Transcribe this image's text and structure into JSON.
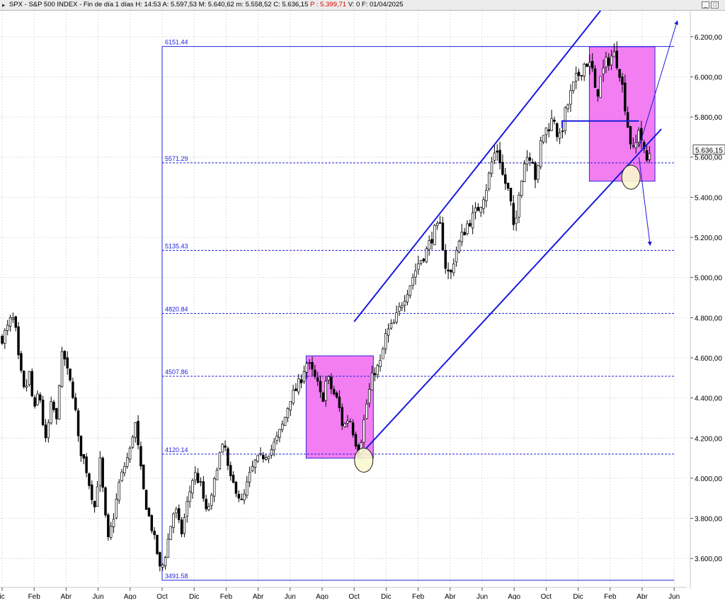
{
  "header": {
    "symbol": "SPX - S&P 500 INDEX - Fin de día 1 días",
    "h": "H: 14:53",
    "a": "A: 5.597,53",
    "m": "M: 5.640,62",
    "low": "m: 5.558,52",
    "c": "C: 5.636,15",
    "p": "P : 5.399,71",
    "v": "V: 0",
    "f": "F: 01/04/2025"
  },
  "chart_data": {
    "type": "candlestick",
    "ylim": [
      3470,
      6330
    ],
    "y_ticks": [
      {
        "value": 3600,
        "label": "3.600,00"
      },
      {
        "value": 3800,
        "label": "3.800,00"
      },
      {
        "value": 4000,
        "label": "4.000,00"
      },
      {
        "value": 4200,
        "label": "4.200,00"
      },
      {
        "value": 4400,
        "label": "4.400,00"
      },
      {
        "value": 4600,
        "label": "4.600,00"
      },
      {
        "value": 4800,
        "label": "4.800,00"
      },
      {
        "value": 5000,
        "label": "5.000,00"
      },
      {
        "value": 5200,
        "label": "5.200,00"
      },
      {
        "value": 5400,
        "label": "5.400,00"
      },
      {
        "value": 5600,
        "label": "5.600,00"
      },
      {
        "value": 5800,
        "label": "5.800,00"
      },
      {
        "value": 6000,
        "label": "6.000,00"
      },
      {
        "value": 6200,
        "label": "6.200,00"
      }
    ],
    "x_ticks": [
      {
        "t": 0,
        "label": "ic"
      },
      {
        "t": 2,
        "label": "Feb"
      },
      {
        "t": 4,
        "label": "Abr"
      },
      {
        "t": 6,
        "label": "Jun"
      },
      {
        "t": 8,
        "label": "Ago"
      },
      {
        "t": 10,
        "label": "Oct"
      },
      {
        "t": 12,
        "label": "Dic"
      },
      {
        "t": 14,
        "label": "Feb"
      },
      {
        "t": 16,
        "label": "Abr"
      },
      {
        "t": 18,
        "label": "Jun"
      },
      {
        "t": 20,
        "label": "Ago"
      },
      {
        "t": 22,
        "label": "Oct"
      },
      {
        "t": 24,
        "label": "Dic"
      },
      {
        "t": 26,
        "label": "Feb"
      },
      {
        "t": 28,
        "label": "Abr"
      },
      {
        "t": 30,
        "label": "Jun"
      },
      {
        "t": 32,
        "label": "Ago"
      },
      {
        "t": 34,
        "label": "Oct"
      },
      {
        "t": 36,
        "label": "Dic"
      },
      {
        "t": 38,
        "label": "Feb"
      },
      {
        "t": 40,
        "label": "Abr"
      },
      {
        "t": 42,
        "label": "Jun"
      }
    ],
    "price_path": [
      [
        0.0,
        4700
      ],
      [
        0.3,
        4740
      ],
      [
        0.6,
        4800
      ],
      [
        0.8,
        4770
      ],
      [
        1.0,
        4600
      ],
      [
        1.4,
        4420
      ],
      [
        1.7,
        4520
      ],
      [
        2.0,
        4320
      ],
      [
        2.3,
        4450
      ],
      [
        2.7,
        4170
      ],
      [
        3.1,
        4380
      ],
      [
        3.4,
        4280
      ],
      [
        3.6,
        4520
      ],
      [
        3.8,
        4640
      ],
      [
        4.1,
        4520
      ],
      [
        4.5,
        4400
      ],
      [
        4.8,
        4160
      ],
      [
        5.2,
        4070
      ],
      [
        5.5,
        3950
      ],
      [
        5.8,
        3850
      ],
      [
        6.1,
        4100
      ],
      [
        6.4,
        3850
      ],
      [
        6.6,
        3680
      ],
      [
        7.0,
        3820
      ],
      [
        7.3,
        3970
      ],
      [
        7.6,
        4050
      ],
      [
        8.0,
        4140
      ],
      [
        8.3,
        4290
      ],
      [
        8.6,
        4080
      ],
      [
        8.9,
        3900
      ],
      [
        9.2,
        3800
      ],
      [
        9.6,
        3670
      ],
      [
        9.9,
        3530
      ],
      [
        10.2,
        3620
      ],
      [
        10.5,
        3750
      ],
      [
        10.8,
        3860
      ],
      [
        11.2,
        3720
      ],
      [
        11.6,
        3890
      ],
      [
        12.0,
        4030
      ],
      [
        12.5,
        3950
      ],
      [
        12.7,
        3820
      ],
      [
        13.1,
        3900
      ],
      [
        13.5,
        4100
      ],
      [
        13.9,
        4170
      ],
      [
        14.2,
        4000
      ],
      [
        14.6,
        3950
      ],
      [
        15.0,
        3870
      ],
      [
        15.4,
        4000
      ],
      [
        15.8,
        4080
      ],
      [
        16.3,
        4110
      ],
      [
        16.8,
        4140
      ],
      [
        17.2,
        4200
      ],
      [
        17.6,
        4280
      ],
      [
        18.0,
        4400
      ],
      [
        18.3,
        4430
      ],
      [
        18.7,
        4500
      ],
      [
        19.0,
        4580
      ],
      [
        19.3,
        4540
      ],
      [
        19.7,
        4470
      ],
      [
        20.0,
        4380
      ],
      [
        20.3,
        4510
      ],
      [
        20.6,
        4440
      ],
      [
        21.0,
        4380
      ],
      [
        21.3,
        4250
      ],
      [
        21.7,
        4310
      ],
      [
        22.0,
        4210
      ],
      [
        22.3,
        4120
      ],
      [
        22.5,
        4230
      ],
      [
        22.8,
        4380
      ],
      [
        23.2,
        4530
      ],
      [
        23.6,
        4560
      ],
      [
        24.0,
        4720
      ],
      [
        24.5,
        4770
      ],
      [
        25.0,
        4880
      ],
      [
        25.5,
        4970
      ],
      [
        26.0,
        5070
      ],
      [
        26.5,
        5130
      ],
      [
        27.0,
        5230
      ],
      [
        27.4,
        5250
      ],
      [
        27.7,
        5060
      ],
      [
        28.0,
        5000
      ],
      [
        28.3,
        5120
      ],
      [
        28.7,
        5200
      ],
      [
        29.1,
        5270
      ],
      [
        29.5,
        5310
      ],
      [
        29.9,
        5370
      ],
      [
        30.3,
        5460
      ],
      [
        30.7,
        5610
      ],
      [
        31.0,
        5640
      ],
      [
        31.3,
        5500
      ],
      [
        31.6,
        5440
      ],
      [
        31.9,
        5320
      ],
      [
        32.0,
        5180
      ],
      [
        32.3,
        5440
      ],
      [
        32.7,
        5600
      ],
      [
        33.1,
        5620
      ],
      [
        33.4,
        5460
      ],
      [
        33.7,
        5700
      ],
      [
        34.1,
        5750
      ],
      [
        34.5,
        5800
      ],
      [
        34.8,
        5670
      ],
      [
        35.2,
        5820
      ],
      [
        35.6,
        5930
      ],
      [
        35.9,
        5990
      ],
      [
        36.2,
        6040
      ],
      [
        36.5,
        6080
      ],
      [
        36.9,
        6030
      ],
      [
        37.1,
        5890
      ],
      [
        37.4,
        5990
      ],
      [
        37.7,
        6060
      ],
      [
        38.0,
        6100
      ],
      [
        38.3,
        6110
      ],
      [
        38.6,
        6030
      ],
      [
        38.9,
        5880
      ],
      [
        39.2,
        5700
      ],
      [
        39.5,
        5610
      ],
      [
        39.8,
        5760
      ],
      [
        40.1,
        5620
      ],
      [
        40.3,
        5580
      ],
      [
        40.5,
        5636
      ]
    ],
    "annotations": {
      "fib_levels": [
        {
          "value": 6151.44,
          "label": "6151.44"
        },
        {
          "value": 5571.29,
          "label": "5571.29"
        },
        {
          "value": 5135.43,
          "label": "5135.43"
        },
        {
          "value": 4820.84,
          "label": "4820.84"
        },
        {
          "value": 4507.86,
          "label": "4507.86"
        },
        {
          "value": 4120.14,
          "label": "4120.14"
        },
        {
          "value": 3491.58,
          "label": "3491.58"
        }
      ],
      "last_price_label": "5.636,15",
      "fib_start_t": 10.0,
      "fib_end_t": 42.0,
      "channel_upper": [
        [
          22.0,
          4780
        ],
        [
          37.4,
          6330
        ]
      ],
      "channel_lower": [
        [
          22.3,
          4110
        ],
        [
          41.2,
          5740
        ]
      ],
      "resistance_line": [
        [
          35.0,
          5780
        ],
        [
          39.8,
          5780
        ]
      ],
      "boxes": [
        {
          "t0": 19.0,
          "t1": 23.2,
          "y0": 4100,
          "y1": 4610
        },
        {
          "t0": 36.7,
          "t1": 40.8,
          "y0": 5480,
          "y1": 6150
        }
      ],
      "circles": [
        {
          "t": 22.6,
          "y": 4090
        },
        {
          "t": 39.3,
          "y": 5500
        }
      ],
      "arrows": [
        {
          "from": [
            39.8,
            5650
          ],
          "to": [
            42.2,
            6280
          ]
        },
        {
          "from": [
            39.8,
            5600
          ],
          "to": [
            40.5,
            5160
          ]
        }
      ]
    }
  }
}
